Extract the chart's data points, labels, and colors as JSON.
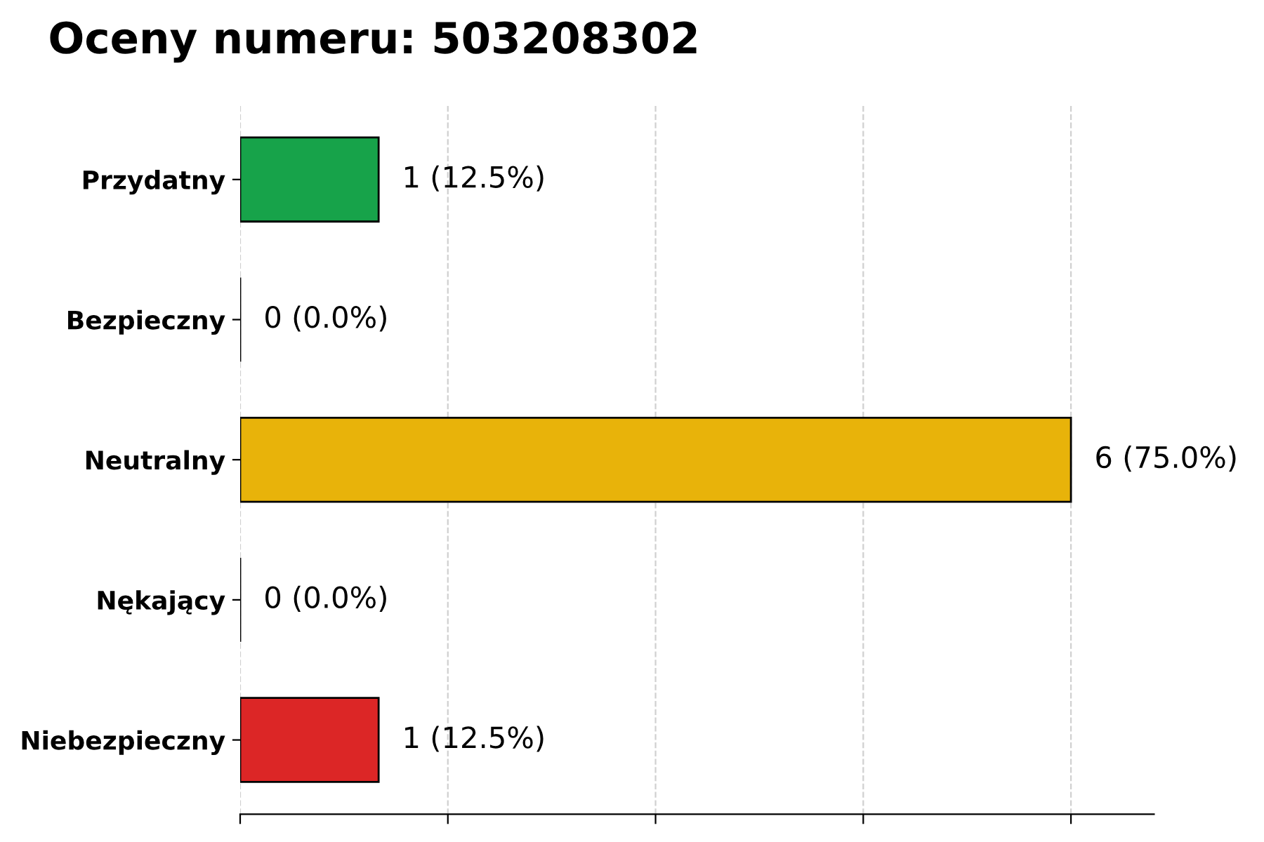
{
  "chart_data": {
    "type": "bar",
    "orientation": "horizontal",
    "title": "Oceny numeru: 503208302",
    "categories": [
      "Przydatny",
      "Bezpieczny",
      "Neutralny",
      "Nękający",
      "Niebezpieczny"
    ],
    "values": [
      1,
      0,
      6,
      0,
      1
    ],
    "colors": [
      "#17a34a",
      "#000000",
      "#e8b30a",
      "#000000",
      "#dc2626"
    ],
    "value_labels": [
      "1 (12.5%)",
      "0 (0.0%)",
      "6 (75.0%)",
      "0 (0.0%)",
      "1 (12.5%)"
    ],
    "xlim": [
      0,
      6.6
    ],
    "xticks": [
      {
        "value": 0,
        "label": null
      },
      {
        "value": 1.5,
        "label": null
      },
      {
        "value": 3,
        "label": null
      },
      {
        "value": 4.5,
        "label": null
      },
      {
        "value": 6,
        "label": null
      }
    ],
    "tick_labels": "y",
    "grid": "x"
  }
}
